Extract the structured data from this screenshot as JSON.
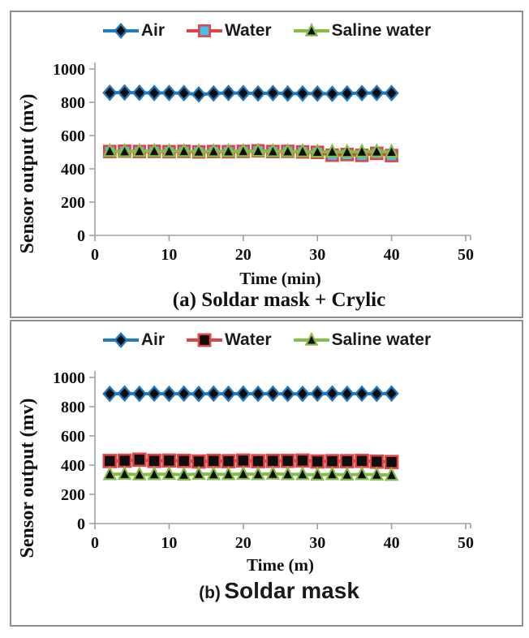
{
  "panels": [
    {
      "caption_prefix": "(a)",
      "caption_title": "Soldar mask + Crylic"
    },
    {
      "caption_prefix": "(b)",
      "caption_title": "Soldar mask"
    }
  ],
  "colors": {
    "air_line": "#1f7ac2",
    "water_line": "#e14444",
    "saline_line": "#85bd4b",
    "water_marker_fill_panel_a": "#3fc3ee",
    "marker_black": "#0d0d0d",
    "axis_gray": "#a0a0a0",
    "panel_border": "#8f8f8f"
  },
  "chart_data": [
    {
      "type": "line",
      "title": "(a) Soldar mask + Crylic",
      "xlabel": "Time (min)",
      "ylabel": "Sensor output (mv)",
      "xlim": [
        0,
        50
      ],
      "ylim": [
        0,
        1000
      ],
      "xticks": [
        0,
        10,
        20,
        30,
        40,
        50
      ],
      "yticks": [
        0,
        200,
        400,
        600,
        800,
        1000
      ],
      "grid": false,
      "legend_position": "top",
      "x": [
        2,
        4,
        6,
        8,
        10,
        12,
        14,
        16,
        18,
        20,
        22,
        24,
        26,
        28,
        30,
        32,
        34,
        36,
        38,
        40
      ],
      "series": [
        {
          "name": "Air",
          "marker": "diamond",
          "line_color": "#1f7ac2",
          "marker_fill": "#0d0d0d",
          "marker_stroke": "#1f7ac2",
          "marker_size": 15,
          "values": [
            857,
            859,
            857,
            856,
            856,
            855,
            847,
            853,
            856,
            855,
            853,
            855,
            852,
            853,
            852,
            851,
            853,
            855,
            856,
            855
          ]
        },
        {
          "name": "Water",
          "marker": "square",
          "line_color": "#e14444",
          "marker_fill": "#3fc3ee",
          "marker_stroke": "#e14444",
          "marker_size": 14,
          "values": [
            504,
            506,
            504,
            505,
            503,
            505,
            502,
            504,
            503,
            505,
            508,
            504,
            505,
            502,
            499,
            482,
            486,
            481,
            493,
            480
          ]
        },
        {
          "name": "Saline water",
          "marker": "triangle",
          "line_color": "#85bd4b",
          "marker_fill": "#0d0d0d",
          "marker_stroke": "#85bd4b",
          "marker_size": 14,
          "values": [
            506,
            505,
            506,
            506,
            505,
            506,
            504,
            505,
            505,
            506,
            507,
            505,
            505,
            504,
            502,
            503,
            501,
            503,
            504,
            502
          ]
        }
      ]
    },
    {
      "type": "line",
      "title": "(b) Soldar mask",
      "xlabel": "Time (m)",
      "ylabel": "Sensor output (mv)",
      "xlim": [
        0,
        50
      ],
      "ylim": [
        0,
        1000
      ],
      "xticks": [
        0,
        10,
        20,
        30,
        40,
        50
      ],
      "yticks": [
        0,
        200,
        400,
        600,
        800,
        1000
      ],
      "grid": false,
      "legend_position": "top",
      "x": [
        2,
        4,
        6,
        8,
        10,
        12,
        14,
        16,
        18,
        20,
        22,
        24,
        26,
        28,
        30,
        32,
        34,
        36,
        38,
        40
      ],
      "series": [
        {
          "name": "Air",
          "marker": "diamond",
          "line_color": "#1f7ac2",
          "marker_fill": "#0d0d0d",
          "marker_stroke": "#1f7ac2",
          "marker_size": 15,
          "values": [
            888,
            890,
            888,
            889,
            888,
            889,
            887,
            889,
            888,
            889,
            888,
            889,
            887,
            888,
            889,
            890,
            888,
            889,
            888,
            890
          ]
        },
        {
          "name": "Water",
          "marker": "square",
          "line_color": "#e14444",
          "marker_fill": "#0d0d0d",
          "marker_stroke": "#e14444",
          "marker_size": 15,
          "values": [
            428,
            430,
            437,
            429,
            431,
            429,
            425,
            429,
            427,
            431,
            427,
            429,
            429,
            431,
            425,
            427,
            427,
            429,
            424,
            421
          ]
        },
        {
          "name": "Saline water",
          "marker": "triangle",
          "line_color": "#85bd4b",
          "marker_fill": "#0d0d0d",
          "marker_stroke": "#85bd4b",
          "marker_size": 14,
          "values": [
            337,
            339,
            335,
            337,
            339,
            334,
            339,
            337,
            337,
            339,
            337,
            340,
            337,
            337,
            334,
            337,
            334,
            337,
            334,
            332
          ]
        }
      ]
    }
  ]
}
